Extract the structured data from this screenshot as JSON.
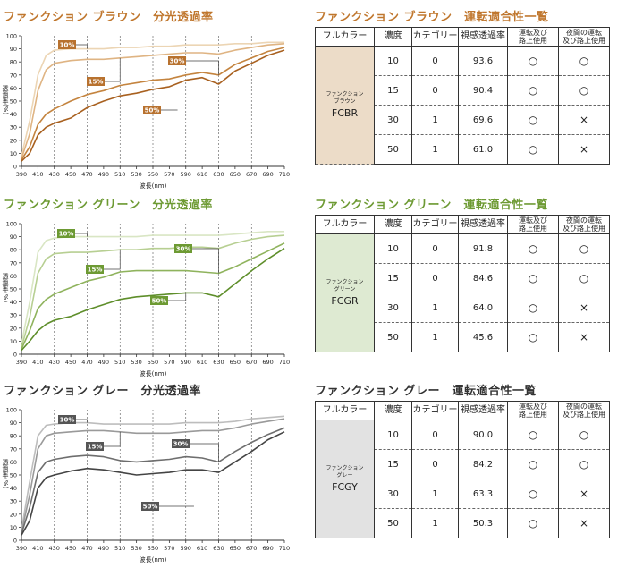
{
  "sections": [
    {
      "chart_title": "ファンクション ブラウン　分光透過率",
      "table_title": "ファンクション ブラウン　運転適合性一覧",
      "color": "#b06a2a",
      "title_color": "#c0772e",
      "name_bg": "#ecdcc8",
      "name_small1": "ファンクション",
      "name_small2": "ブラウン",
      "code": "FCBR",
      "series_colors": [
        "#ecd5b4",
        "#dfb483",
        "#c4843f",
        "#a8601f"
      ],
      "label_fill": "#b8722f",
      "rows": [
        {
          "density": "10",
          "category": "0",
          "vt": "93.6",
          "day": "○",
          "night": "○"
        },
        {
          "density": "15",
          "category": "0",
          "vt": "90.4",
          "day": "○",
          "night": "○"
        },
        {
          "density": "30",
          "category": "1",
          "vt": "69.6",
          "day": "○",
          "night": "×"
        },
        {
          "density": "50",
          "category": "1",
          "vt": "61.0",
          "day": "○",
          "night": "×"
        }
      ]
    },
    {
      "chart_title": "ファンクション グリーン　分光透過率",
      "table_title": "ファンクション グリーン　運転適合性一覧",
      "color": "#5d8a2c",
      "title_color": "#6d9a33",
      "name_bg": "#deead2",
      "name_small1": "ファンクション",
      "name_small2": "グリーン",
      "code": "FCGR",
      "series_colors": [
        "#d9e6c4",
        "#b7cf92",
        "#8fb35d",
        "#5e8e2a"
      ],
      "label_fill": "#6d9a33",
      "rows": [
        {
          "density": "10",
          "category": "0",
          "vt": "91.8",
          "day": "○",
          "night": "○"
        },
        {
          "density": "15",
          "category": "0",
          "vt": "84.6",
          "day": "○",
          "night": "○"
        },
        {
          "density": "30",
          "category": "1",
          "vt": "64.0",
          "day": "○",
          "night": "×"
        },
        {
          "density": "50",
          "category": "1",
          "vt": "45.6",
          "day": "○",
          "night": "×"
        }
      ]
    },
    {
      "chart_title": "ファンクション グレー　分光透過率",
      "table_title": "ファンクション グレー　運転適合性一覧",
      "color": "#333333",
      "title_color": "#333333",
      "name_bg": "#e2e2e2",
      "name_small1": "ファンクション",
      "name_small2": "グレー",
      "code": "FCGY",
      "series_colors": [
        "#bdbdbd",
        "#9a9a9a",
        "#6e6e6e",
        "#444444"
      ],
      "label_fill": "#555555",
      "rows": [
        {
          "density": "10",
          "category": "0",
          "vt": "90.0",
          "day": "○",
          "night": "○"
        },
        {
          "density": "15",
          "category": "0",
          "vt": "84.2",
          "day": "○",
          "night": "○"
        },
        {
          "density": "30",
          "category": "1",
          "vt": "63.3",
          "day": "○",
          "night": "×"
        },
        {
          "density": "50",
          "category": "1",
          "vt": "50.3",
          "day": "○",
          "night": "×"
        }
      ]
    }
  ],
  "table_headers": {
    "color": "フルカラー",
    "density": "濃度",
    "category": "カテゴリー",
    "vt": "視感透過率",
    "day_line1": "運転及び",
    "day_line2": "路上使用",
    "night_line1": "夜間の運転",
    "night_line2": "及び路上使用"
  },
  "chart_data": [
    {
      "type": "line",
      "title": "ファンクション ブラウン　分光透過率",
      "xlabel": "波長(nm)",
      "ylabel": "透過率(%)",
      "xlim": [
        390,
        710
      ],
      "ylim": [
        0,
        100
      ],
      "xticks": [
        390,
        410,
        430,
        450,
        470,
        490,
        510,
        530,
        550,
        570,
        590,
        610,
        630,
        650,
        670,
        690,
        710
      ],
      "yticks": [
        0,
        10,
        20,
        30,
        40,
        50,
        60,
        70,
        80,
        90,
        100
      ],
      "dashed_x": [
        430,
        470,
        510,
        550,
        590,
        630,
        670
      ],
      "x": [
        390,
        400,
        410,
        420,
        430,
        450,
        470,
        490,
        510,
        530,
        550,
        570,
        590,
        610,
        630,
        650,
        670,
        690,
        710
      ],
      "series": [
        {
          "name": "10%",
          "values": [
            8,
            35,
            70,
            85,
            89,
            90,
            90,
            90,
            91,
            91,
            92,
            92,
            93,
            93,
            93,
            94,
            94,
            95,
            95
          ]
        },
        {
          "name": "15%",
          "values": [
            6,
            25,
            58,
            74,
            79,
            81,
            82,
            82,
            83,
            84,
            85,
            86,
            87,
            87,
            86,
            89,
            91,
            93,
            94
          ]
        },
        {
          "name": "30%",
          "values": [
            5,
            15,
            32,
            40,
            44,
            50,
            55,
            58,
            62,
            64,
            66,
            67,
            70,
            72,
            70,
            78,
            83,
            88,
            91
          ]
        },
        {
          "name": "50%",
          "values": [
            4,
            10,
            24,
            30,
            33,
            37,
            45,
            50,
            54,
            56,
            59,
            61,
            66,
            68,
            63,
            73,
            79,
            85,
            89
          ]
        }
      ]
    },
    {
      "type": "line",
      "title": "ファンクション グリーン　分光透過率",
      "xlabel": "波長(nm)",
      "ylabel": "透過率(%)",
      "xlim": [
        390,
        710
      ],
      "ylim": [
        0,
        100
      ],
      "xticks": [
        390,
        410,
        430,
        450,
        470,
        490,
        510,
        530,
        550,
        570,
        590,
        610,
        630,
        650,
        670,
        690,
        710
      ],
      "yticks": [
        0,
        10,
        20,
        30,
        40,
        50,
        60,
        70,
        80,
        90,
        100
      ],
      "dashed_x": [
        430,
        470,
        510,
        550,
        590,
        630,
        670
      ],
      "x": [
        390,
        400,
        410,
        420,
        430,
        450,
        470,
        490,
        510,
        530,
        550,
        570,
        590,
        610,
        630,
        650,
        670,
        690,
        710
      ],
      "series": [
        {
          "name": "10%",
          "values": [
            8,
            40,
            78,
            87,
            89,
            90,
            90,
            90,
            90,
            90,
            91,
            91,
            91,
            91,
            91,
            92,
            93,
            94,
            94
          ]
        },
        {
          "name": "15%",
          "values": [
            5,
            28,
            62,
            73,
            77,
            78,
            78,
            79,
            80,
            80,
            81,
            81,
            82,
            82,
            81,
            85,
            88,
            90,
            91
          ]
        },
        {
          "name": "30%",
          "values": [
            4,
            18,
            35,
            42,
            46,
            51,
            56,
            59,
            63,
            64,
            64,
            64,
            64,
            63,
            62,
            67,
            73,
            79,
            85
          ]
        },
        {
          "name": "50%",
          "values": [
            3,
            10,
            18,
            23,
            26,
            29,
            34,
            38,
            42,
            44,
            45,
            46,
            47,
            47,
            44,
            54,
            64,
            73,
            81
          ]
        }
      ]
    },
    {
      "type": "line",
      "title": "ファンクション グレー　分光透過率",
      "xlabel": "波長(nm)",
      "ylabel": "透過率(%)",
      "xlim": [
        390,
        710
      ],
      "ylim": [
        0,
        100
      ],
      "xticks": [
        390,
        410,
        430,
        450,
        470,
        490,
        510,
        530,
        550,
        570,
        590,
        610,
        630,
        650,
        670,
        690,
        710
      ],
      "yticks": [
        0,
        10,
        20,
        30,
        40,
        50,
        60,
        70,
        80,
        90,
        100
      ],
      "dashed_x": [
        430,
        470,
        510,
        550,
        590,
        630,
        670
      ],
      "x": [
        390,
        400,
        410,
        420,
        430,
        450,
        470,
        490,
        510,
        530,
        550,
        570,
        590,
        610,
        630,
        650,
        670,
        690,
        710
      ],
      "series": [
        {
          "name": "10%",
          "values": [
            8,
            45,
            80,
            88,
            89,
            90,
            90,
            89,
            89,
            89,
            89,
            89,
            90,
            90,
            90,
            91,
            93,
            94,
            95
          ]
        },
        {
          "name": "15%",
          "values": [
            6,
            35,
            70,
            80,
            82,
            83,
            84,
            84,
            83,
            82,
            82,
            82,
            83,
            84,
            84,
            86,
            89,
            91,
            93
          ]
        },
        {
          "name": "30%",
          "values": [
            5,
            25,
            52,
            60,
            62,
            64,
            65,
            64,
            61,
            60,
            61,
            62,
            64,
            63,
            60,
            68,
            75,
            81,
            86
          ]
        },
        {
          "name": "50%",
          "values": [
            4,
            15,
            40,
            48,
            50,
            53,
            55,
            54,
            52,
            50,
            51,
            52,
            54,
            54,
            52,
            60,
            68,
            77,
            83
          ]
        }
      ]
    }
  ]
}
